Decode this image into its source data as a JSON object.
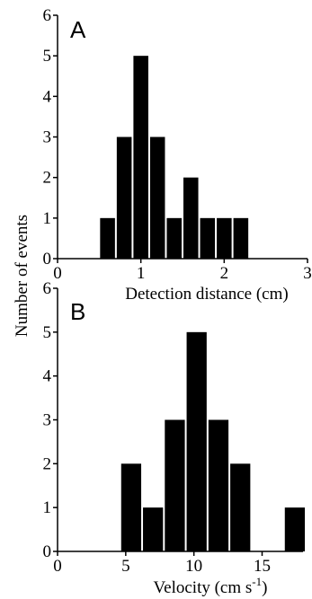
{
  "figure": {
    "y_axis_title": "Number of events"
  },
  "chart_data": [
    {
      "type": "bar",
      "panel_letter": "A",
      "xlabel": "Detection distance (cm)",
      "ylabel": "Number of events",
      "xlim": [
        0,
        3
      ],
      "ylim": [
        0,
        6
      ],
      "x_ticks": [
        0,
        1,
        2,
        3
      ],
      "y_ticks": [
        0,
        1,
        2,
        3,
        4,
        5,
        6
      ],
      "bin_width": 0.2,
      "bin_centers": [
        0.6,
        0.8,
        1.0,
        1.2,
        1.4,
        1.6,
        1.8,
        2.0,
        2.2,
        2.4
      ],
      "values": [
        1,
        3,
        5,
        3,
        1,
        2,
        1,
        1,
        1,
        0
      ],
      "bar_color": "#000000",
      "grid": false,
      "legend": "none"
    },
    {
      "type": "bar",
      "panel_letter": "B",
      "xlabel_main": "Velocity (cm s",
      "xlabel_sup": "-1",
      "xlabel_tail": ")",
      "ylabel": "Number of events",
      "xlim": [
        0,
        18
      ],
      "ylim": [
        0,
        6
      ],
      "x_ticks": [
        0,
        5,
        10,
        15
      ],
      "y_ticks": [
        0,
        1,
        2,
        3,
        4,
        5,
        6
      ],
      "bin_width": 1.6,
      "bin_centers": [
        5.4,
        7.0,
        8.6,
        10.2,
        11.8,
        13.4,
        17.4
      ],
      "values": [
        2,
        1,
        3,
        5,
        3,
        2,
        1
      ],
      "bar_color": "#000000",
      "grid": false,
      "legend": "none"
    }
  ]
}
